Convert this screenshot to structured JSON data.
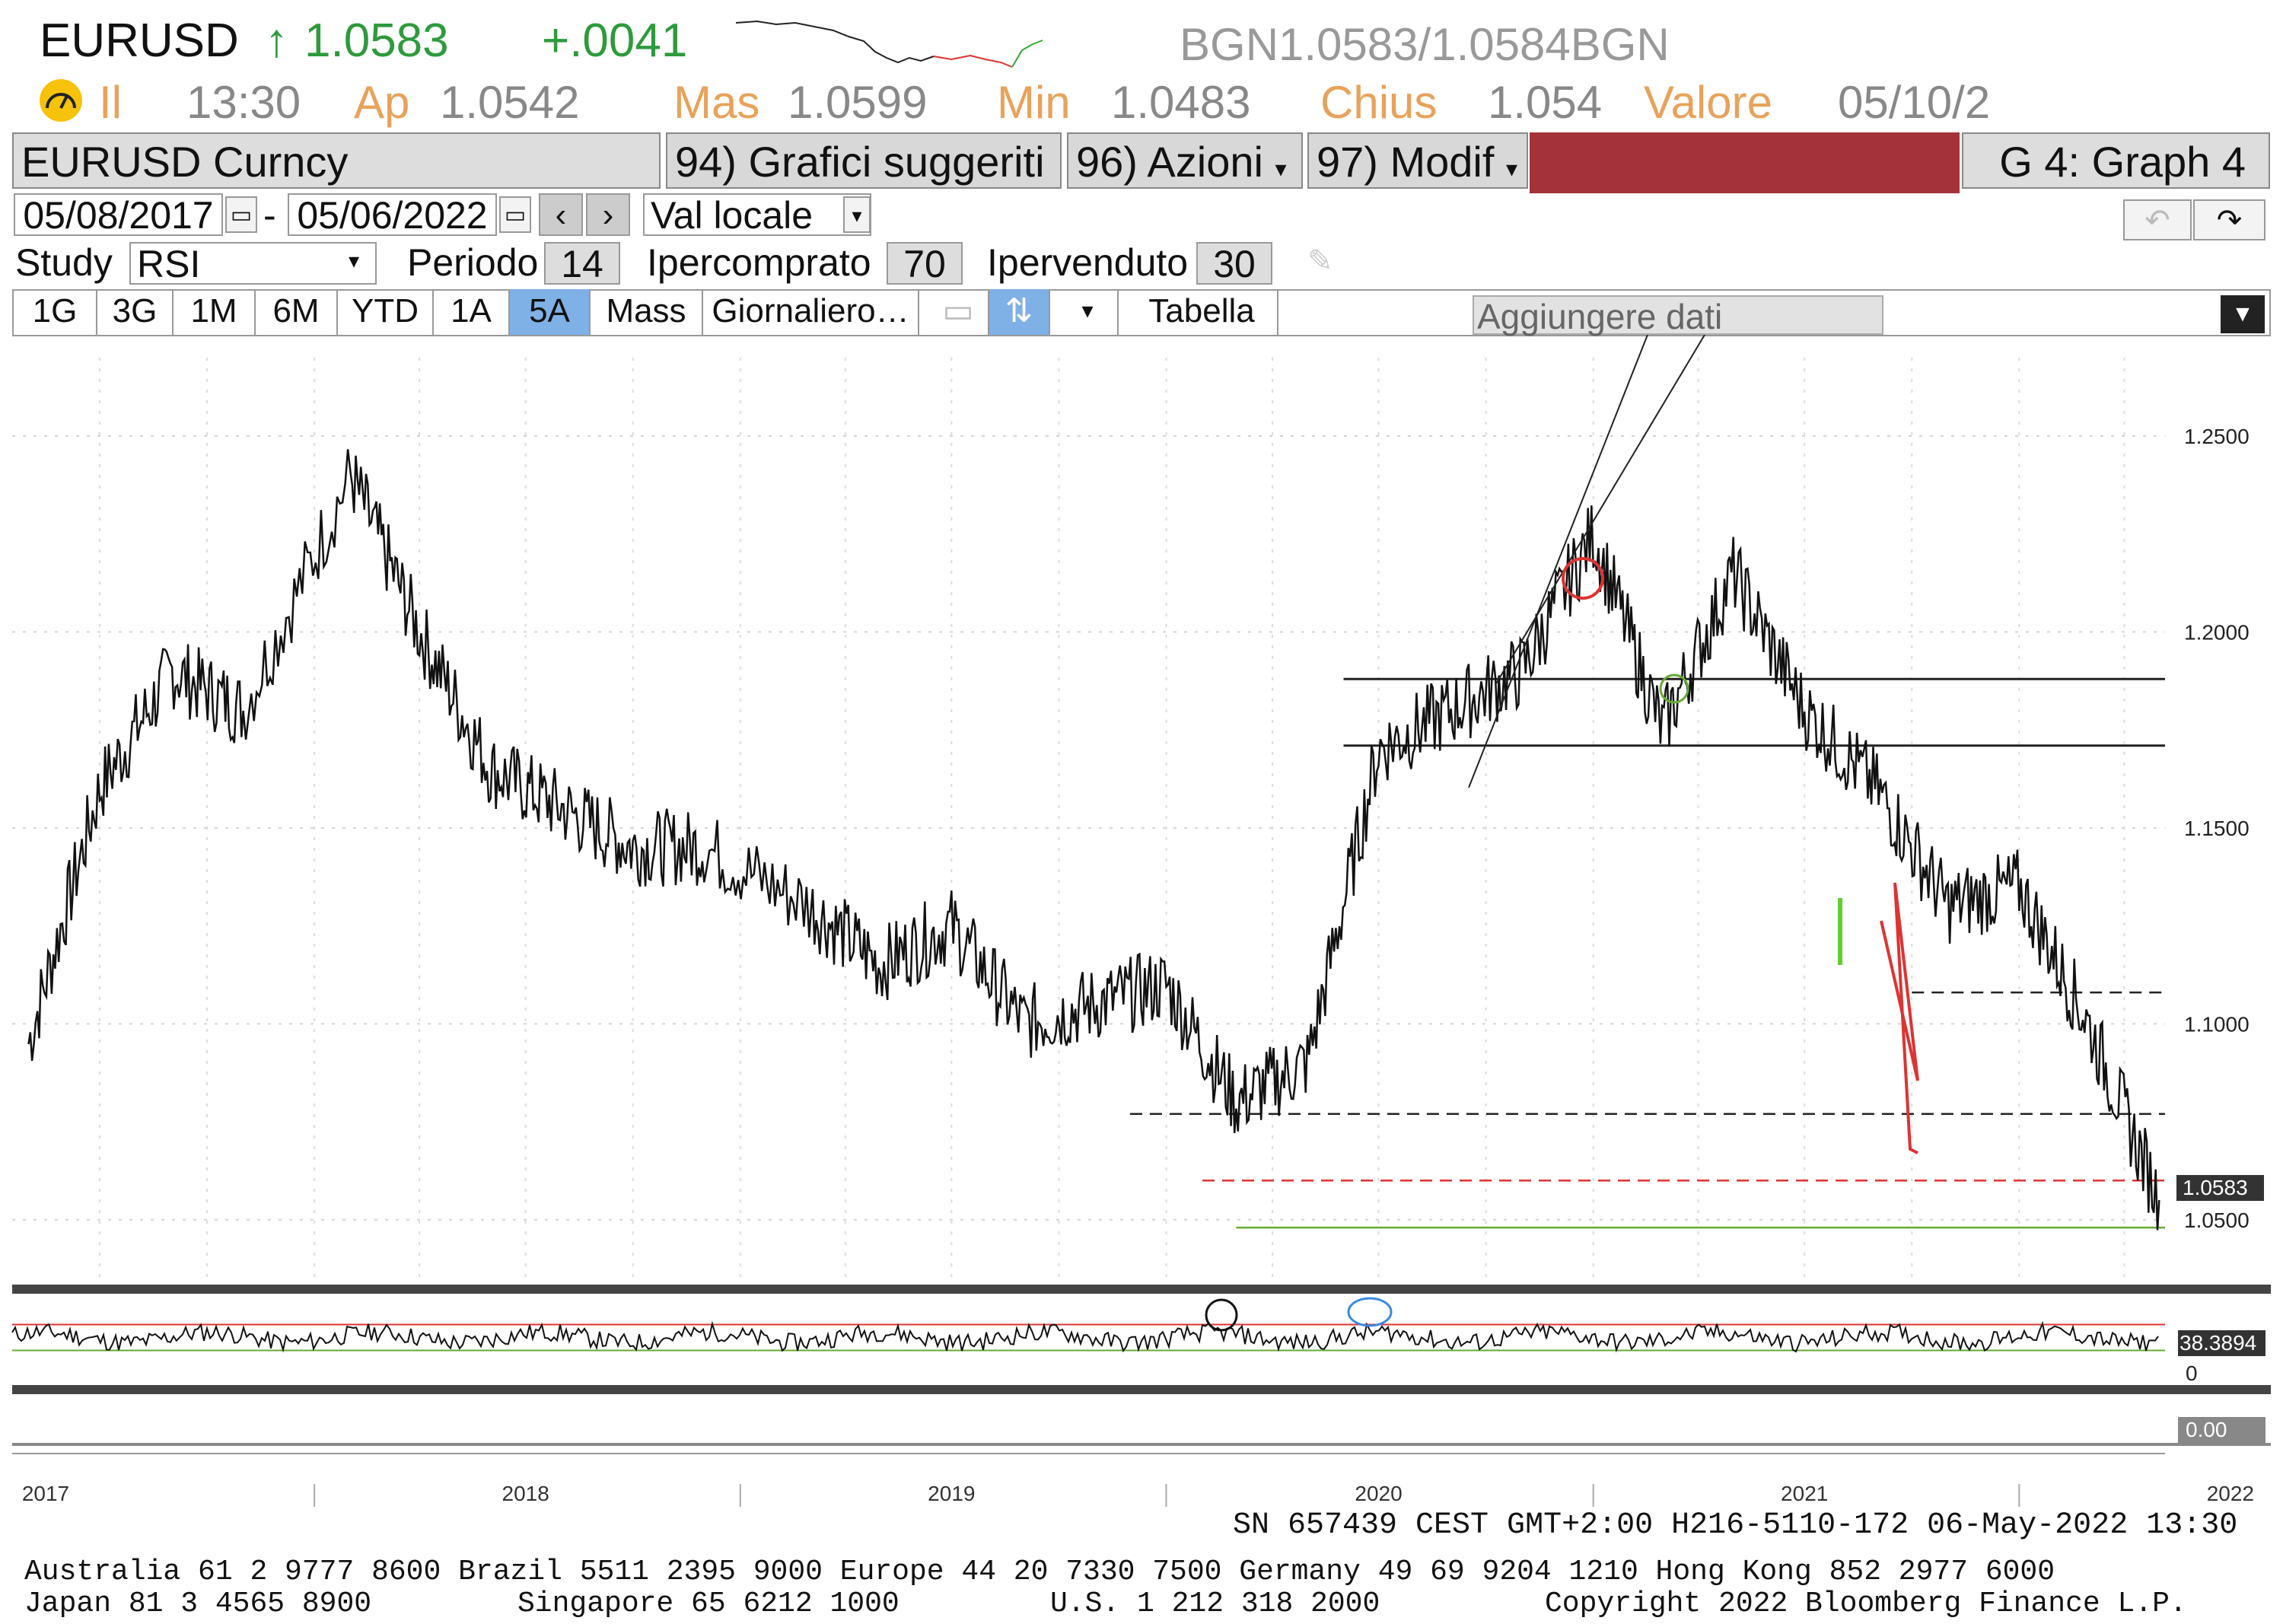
{
  "header": {
    "symbol": "EURUSD",
    "arrow": "↑",
    "last": "1.0583",
    "change": "+.0041",
    "bid_ask": "BGN1.0583/1.0584BGN",
    "time_label": "Il",
    "time": "13:30",
    "open_label": "Ap",
    "open": "1.0542",
    "high_label": "Mas",
    "high": "1.0599",
    "low_label": "Min",
    "low": "1.0483",
    "close_label": "Chius",
    "close": "1.054",
    "value_label": "Valore",
    "value_date": "05/10/2",
    "colors": {
      "positive": "#2e9a3c",
      "label": "#e8a25a"
    }
  },
  "toolbar": {
    "security": "EURUSD Curncy",
    "suggested": "94) Grafici suggeriti",
    "actions": "96) Azioni",
    "modify": "97) Modif",
    "graph": "G 4: Graph 4"
  },
  "controls": {
    "start_date": "05/08/2017",
    "dash": "-",
    "end_date": "05/06/2022",
    "currency": "Val locale",
    "study_label": "Study",
    "study": "RSI",
    "period_label": "Periodo",
    "period": "14",
    "overbought_label": "Ipercomprato",
    "overbought": "70",
    "oversold_label": "Ipervenduto",
    "oversold": "30"
  },
  "timeframes": [
    "1G",
    "3G",
    "1M",
    "6M",
    "YTD",
    "1A",
    "5A",
    "Mass"
  ],
  "active_timeframe": "5A",
  "frequency": "Giornaliero…",
  "table_label": "Tabella",
  "add_data": "Aggiungere dati",
  "chart_data": {
    "type": "line",
    "series": [
      {
        "name": "EURUSD",
        "x": [
          "2017-05",
          "2017-07",
          "2017-09",
          "2017-11",
          "2018-02",
          "2018-04",
          "2018-06",
          "2018-08",
          "2018-10",
          "2018-12",
          "2019-03",
          "2019-05",
          "2019-07",
          "2019-09",
          "2019-11",
          "2020-01",
          "2020-03",
          "2020-05",
          "2020-07",
          "2020-09",
          "2020-11",
          "2021-01",
          "2021-03",
          "2021-05",
          "2021-07",
          "2021-09",
          "2021-11",
          "2022-01",
          "2022-03",
          "2022-05"
        ],
        "values": [
          1.095,
          1.16,
          1.19,
          1.18,
          1.24,
          1.2,
          1.165,
          1.155,
          1.145,
          1.145,
          1.13,
          1.115,
          1.125,
          1.1,
          1.105,
          1.11,
          1.08,
          1.09,
          1.17,
          1.18,
          1.19,
          1.225,
          1.175,
          1.215,
          1.18,
          1.16,
          1.13,
          1.135,
          1.1,
          1.055
        ]
      }
    ],
    "study": {
      "name": "RSI",
      "period": 14,
      "overbought": 70,
      "oversold": 30,
      "last": "38.3894"
    },
    "last_label": "1.0583",
    "study_zero": "0",
    "lower_panel_value": "0.00",
    "y_ticks": [
      "1.2500",
      "1.2000",
      "1.1500",
      "1.1000",
      "1.0500"
    ],
    "x_ticks": [
      "2017",
      "2018",
      "2019",
      "2020",
      "2021",
      "2022"
    ],
    "ylim": [
      1.035,
      1.27
    ],
    "horizontal_lines": [
      1.188,
      1.171,
      1.108,
      1.077,
      1.06,
      1.048
    ],
    "grid": true
  },
  "footer": {
    "session": "SN 657439 CEST GMT+2:00 H216-5110-172 06-May-2022 13:30",
    "contacts1": "Australia 61 2 9777 8600 Brazil 5511 2395 9000 Europe 44 20 7330 7500 Germany 49 69 9204 1210 Hong Kong 852 2977 6000",
    "contacts2_a": "Japan 81 3 4565 8900",
    "contacts2_b": "Singapore 65 6212 1000",
    "contacts2_c": "U.S. 1 212 318 2000",
    "contacts2_d": "Copyright 2022 Bloomberg Finance L.P."
  }
}
